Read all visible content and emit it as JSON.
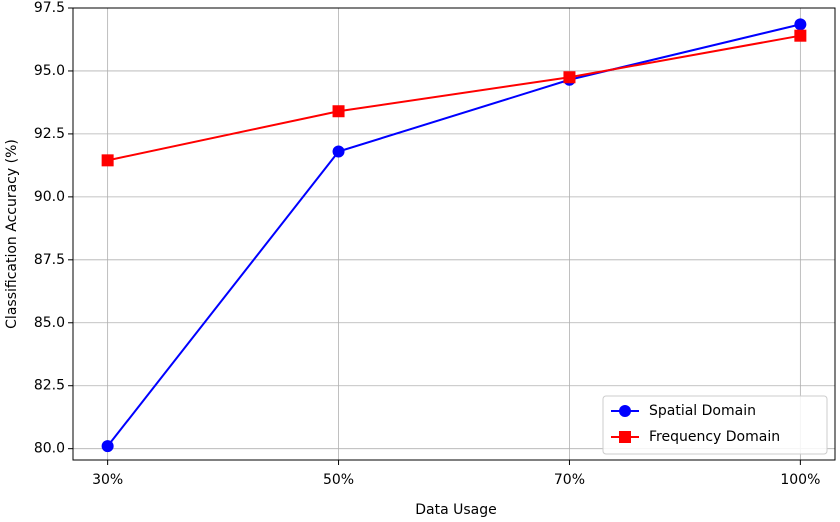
{
  "chart_data": {
    "type": "line",
    "categories": [
      "30%",
      "50%",
      "70%",
      "100%"
    ],
    "series": [
      {
        "name": "Spatial Domain",
        "color": "#0000ff",
        "marker": "circle",
        "values": [
          80.1,
          91.8,
          94.65,
          96.85
        ]
      },
      {
        "name": "Frequency Domain",
        "color": "#ff0000",
        "marker": "square",
        "values": [
          91.45,
          93.4,
          94.75,
          96.4
        ]
      }
    ],
    "xlabel": "Data Usage",
    "ylabel": "Classification Accuracy (%)",
    "ylim": [
      79.55,
      97.5
    ],
    "yticks": [
      {
        "value": 80,
        "label": "80.0"
      },
      82.5,
      {
        "value": 85,
        "label": "85.0"
      },
      87.5,
      {
        "value": 90,
        "label": "90.0"
      },
      92.5,
      {
        "value": 95,
        "label": "95.0"
      },
      97.5
    ],
    "grid": true,
    "legend": "lower right"
  }
}
